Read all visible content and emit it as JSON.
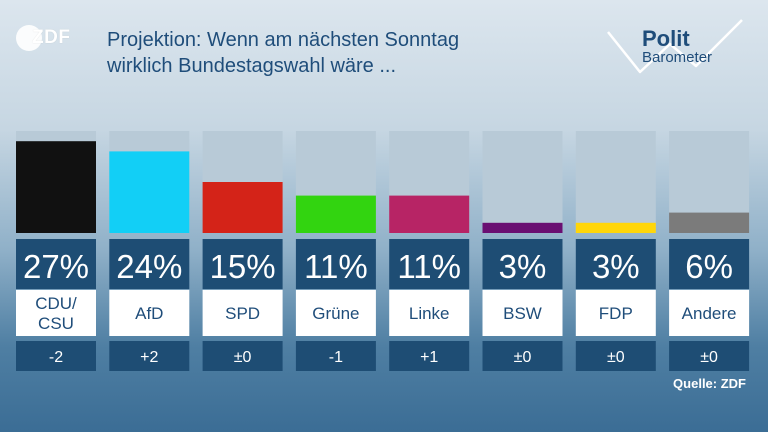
{
  "header": {
    "brand": "ZDF",
    "title_line1": "Projektion: Wenn am nächsten Sonntag",
    "title_line2": "wirklich Bundestagswahl wäre ...",
    "politbarometer_line1": "Polit",
    "politbarometer_line2": "Barometer"
  },
  "source": "Quelle: ZDF",
  "colors": {
    "title": "#1f4d7a",
    "track": "#b8cad7",
    "value_box": "#1e4d74",
    "label_box": "#ffffff",
    "label_text": "#1f4d7a",
    "change_box": "#1e4d74"
  },
  "chart_data": {
    "type": "bar",
    "ylim": [
      0,
      30
    ],
    "categories": [
      "CDU/CSU",
      "AfD",
      "SPD",
      "Grüne",
      "Linke",
      "BSW",
      "FDP",
      "Andere"
    ],
    "category_lines": [
      [
        "CDU/",
        "CSU"
      ],
      [
        "AfD"
      ],
      [
        "SPD"
      ],
      [
        "Grüne"
      ],
      [
        "Linke"
      ],
      [
        "BSW"
      ],
      [
        "FDP"
      ],
      [
        "Andere"
      ]
    ],
    "values": [
      27,
      24,
      15,
      11,
      11,
      3,
      3,
      6
    ],
    "value_labels": [
      "27%",
      "24%",
      "15%",
      "11%",
      "11%",
      "3%",
      "3%",
      "6%"
    ],
    "changes": [
      "-2",
      "+2",
      "±0",
      "-1",
      "+1",
      "±0",
      "±0",
      "±0"
    ],
    "bar_colors": [
      "#111111",
      "#12cff6",
      "#d42318",
      "#32d410",
      "#b72465",
      "#6a0f72",
      "#ffd60a",
      "#7b7b7b"
    ]
  }
}
